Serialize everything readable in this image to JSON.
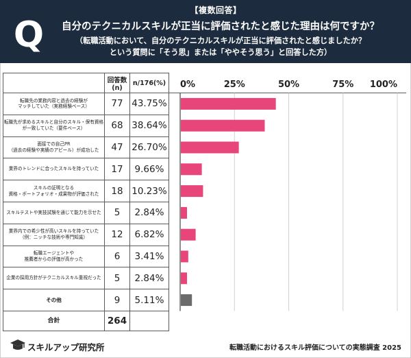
{
  "header": {
    "tag": "【複数回答】",
    "title": "自分のテクニカルスキルが正当に評価されたと感じた理由は何ですか？",
    "sub1": "（転職活動において、自分のテクニカルスキルが正当に評価されたと感じましたか？",
    "sub2": "という質問に「そう思」または「ややそう思う」と回答した方）",
    "badge": "Q"
  },
  "table": {
    "col_count_label": "回答数(n)",
    "col_pct_label": "n/176(%)",
    "total_label": "合計",
    "total_value": "264"
  },
  "chart_data": {
    "type": "bar",
    "orientation": "horizontal",
    "x_ticks": [
      "0%",
      "25%",
      "50%",
      "75%",
      "100%"
    ],
    "xlim": [
      0,
      100
    ],
    "grid": true,
    "colors": {
      "default": "#e8457a",
      "other": "#6b6b6b"
    },
    "categories": [
      [
        "転職先の業務内容と過去の経験が",
        "マッチしていた（実務経験ベース）"
      ],
      [
        "転職先が求めるスキルと自分のスキル・保有資格",
        "が一致していた（要件ベース）"
      ],
      [
        "面接での自己PR",
        "（過去の経験や実績のアピール）が成功した"
      ],
      [
        "業界のトレンドに合ったスキルを持っていた"
      ],
      [
        "スキルの証明となる",
        "資格・ポートフォリオ・成果物が評価された"
      ],
      [
        "スキルテストや実技試験を通じて能力を示せた"
      ],
      [
        "業界内での希少性が高いスキルを持っていた",
        "（例：ニッチな技術や専門知識）"
      ],
      [
        "転職エージェントや",
        "推薦者からの評価が高かった"
      ],
      [
        "企業の採用方針がテクニカルスキル重視だった"
      ],
      [
        "その他"
      ]
    ],
    "counts": [
      "77",
      "68",
      "47",
      "17",
      "18",
      "5",
      "12",
      "6",
      "5",
      "9"
    ],
    "percent_labels": [
      "43.75%",
      "38.64%",
      "26.70%",
      "9.66%",
      "10.23%",
      "2.84%",
      "6.82%",
      "3.41%",
      "2.84%",
      "5.11%"
    ],
    "values": [
      43.75,
      38.64,
      26.7,
      9.66,
      10.23,
      2.84,
      6.82,
      3.41,
      2.84,
      5.11
    ]
  },
  "footer": {
    "logo_text": "スキルアップ研究所",
    "note": "転職活動におけるスキル評価についての実態調査 2025"
  }
}
